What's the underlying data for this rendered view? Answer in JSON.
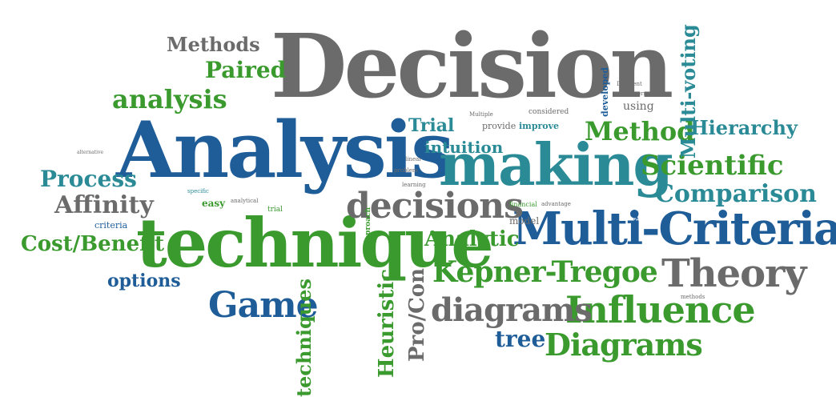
{
  "colors": {
    "green": "#3a9a2e",
    "blue": "#1f5d99",
    "teal": "#2a8a96",
    "gray": "#6b6b6b"
  },
  "words": {
    "decision": "Decision",
    "analysis_big": "Analysis",
    "technique": "technique",
    "making": "making",
    "multi_criteria": "Multi-Criteria",
    "decisions": "decisions",
    "theory": "Theory",
    "influence": "Influence",
    "diagrams_mid": "diagrams",
    "diagrams_cap": "Diagrams",
    "kepner": "Kepner-Tregoe",
    "game": "Game",
    "methods": "Methods",
    "paired": "Paired",
    "analysis_small": "analysis",
    "process": "Process",
    "affinity": "Affinity",
    "cost_benefit": "Cost/Benefit",
    "options": "options",
    "method": "Method",
    "hierarchy": "Hierarchy",
    "scientific": "Scientific",
    "comparison": "Comparison",
    "multi_voting": "Multi-voting",
    "analytic": "Analytic",
    "trial": "Trial",
    "intuition": "intuition",
    "techniques": "techniques",
    "heuristic": "Heuristic",
    "pro_con": "Pro/Con",
    "tree": "tree",
    "criteria": "criteria",
    "easy": "easy",
    "using": "using",
    "developed": "developed",
    "improve": "improve",
    "provide": "provide",
    "model": "model",
    "financial": "financial",
    "advantage": "advantage",
    "multiple": "Multiple",
    "considered": "considered",
    "trial_small": "trial",
    "analytical": "analytical",
    "specific": "specific",
    "alternative": "alternative",
    "reduce": "reduce",
    "learning": "learning",
    "problem": "problem",
    "linear": "linear",
    "error": "error",
    "different": "Different",
    "best": "best",
    "approach": "approach",
    "methods_small": "methods"
  }
}
